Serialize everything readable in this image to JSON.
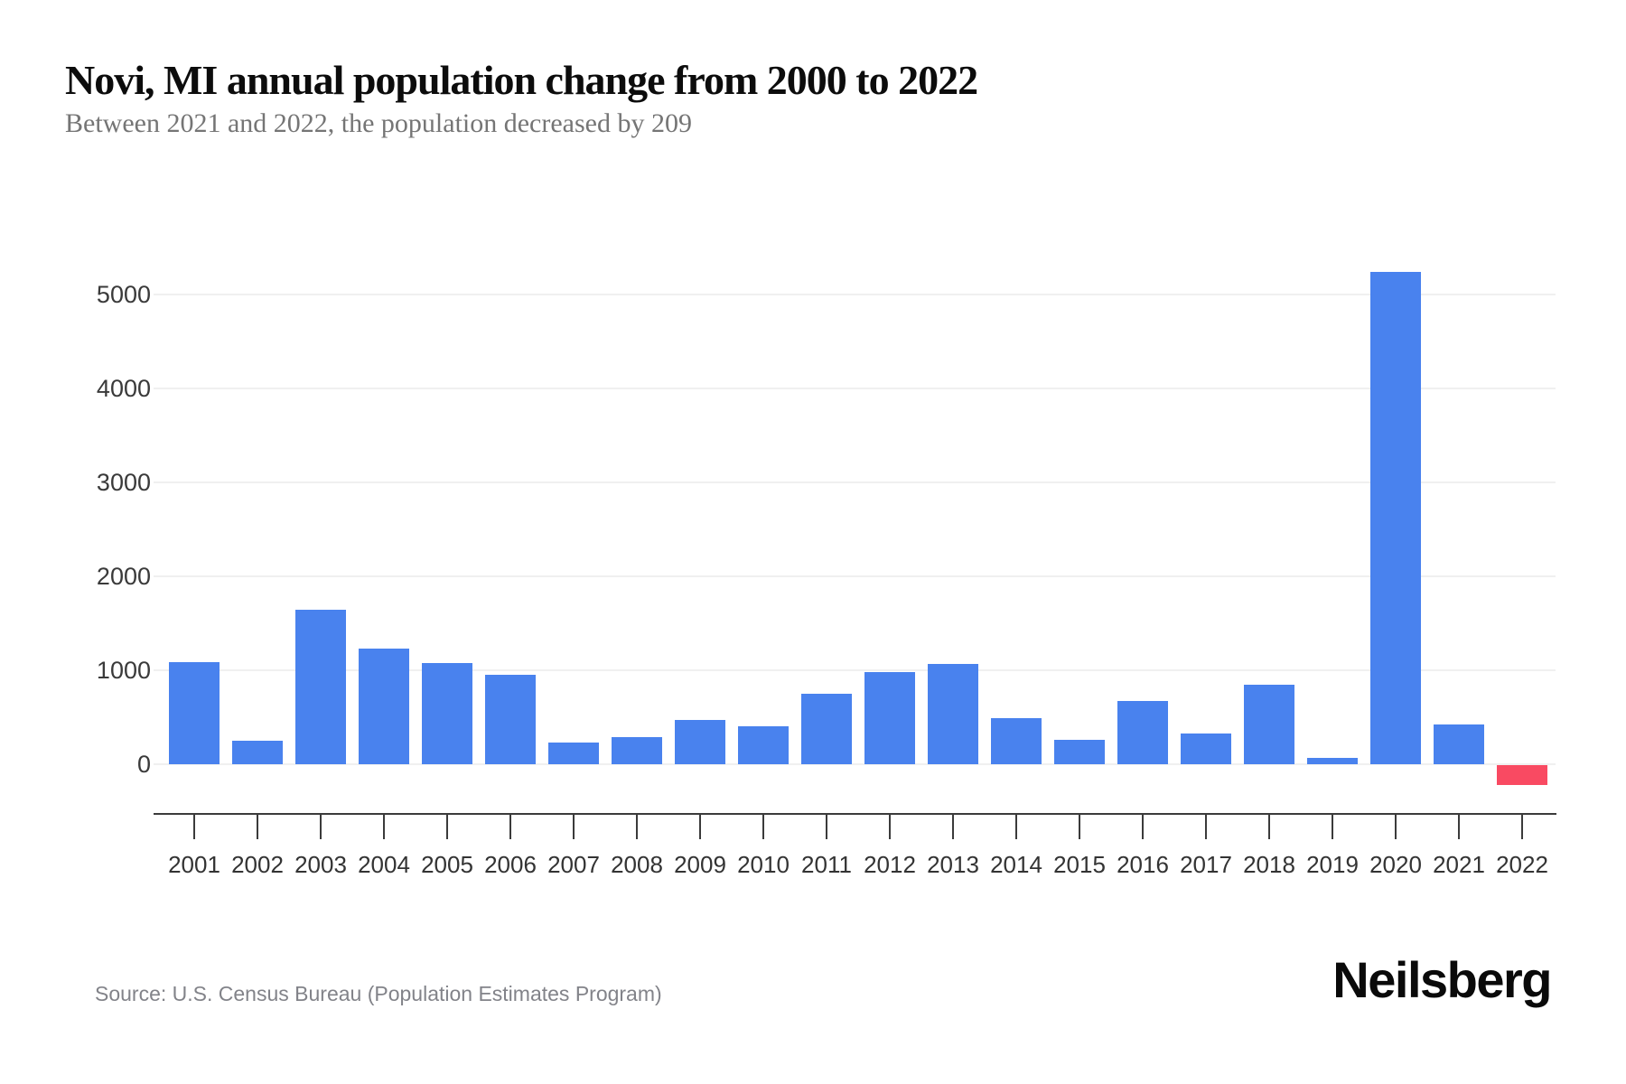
{
  "header": {
    "title": "Novi, MI annual population change from 2000 to 2022",
    "subtitle": "Between 2021 and 2022, the population decreased by 209"
  },
  "footer": {
    "source": "Source: U.S. Census Bureau (Population Estimates Program)",
    "brand": "Neilsberg"
  },
  "chart_data": {
    "type": "bar",
    "title": "Novi, MI annual population change from 2000 to 2022",
    "subtitle": "Between 2021 and 2022, the population decreased by 209",
    "categories": [
      "2001",
      "2002",
      "2003",
      "2004",
      "2005",
      "2006",
      "2007",
      "2008",
      "2009",
      "2010",
      "2011",
      "2012",
      "2013",
      "2014",
      "2015",
      "2016",
      "2017",
      "2018",
      "2019",
      "2020",
      "2021",
      "2022"
    ],
    "values": [
      1090,
      250,
      1640,
      1230,
      1080,
      950,
      230,
      290,
      470,
      400,
      750,
      980,
      1070,
      490,
      260,
      670,
      330,
      850,
      70,
      5240,
      420,
      -209
    ],
    "xlabel": "",
    "ylabel": "",
    "ylim": [
      -400,
      5450
    ],
    "yticks": [
      0,
      1000,
      2000,
      3000,
      4000,
      5000
    ],
    "grid": true,
    "legend": "none",
    "colors": {
      "positive_bar": "#4982ee",
      "negative_bar": "#f94a62",
      "gridline": "#f0f0f0",
      "axis": "#3b3b3b",
      "axis_text": "#3a3a3a"
    },
    "notes": "single series; all bars blue except negative 2022 bar in red"
  }
}
